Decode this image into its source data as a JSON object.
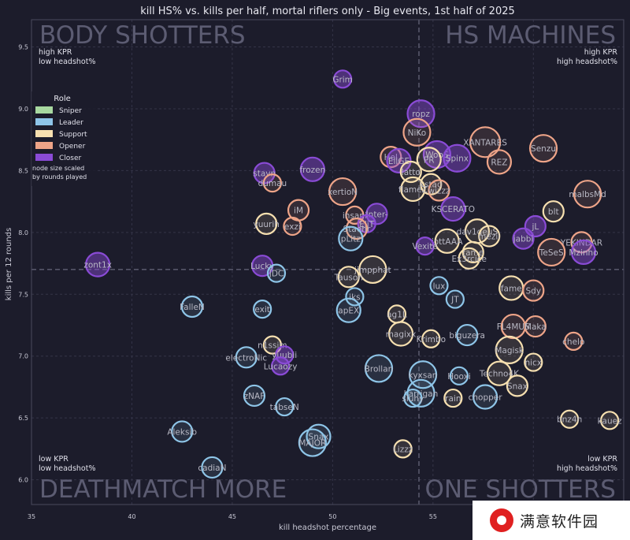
{
  "chart_data": {
    "type": "scatter",
    "title": "kill HS% vs. kills per half, mortal riflers only - Big events, 1st half of 2025",
    "xlabel": "kill headshot percentage",
    "ylabel": "kills per 12 rounds",
    "xlim": [
      35,
      64.5
    ],
    "ylim": [
      5.8,
      9.72
    ],
    "xticks": [
      35,
      40,
      45,
      50,
      55,
      60
    ],
    "yticks": [
      6.0,
      6.5,
      7.0,
      7.5,
      8.0,
      8.5,
      9.0,
      9.5
    ],
    "grid": true,
    "ref_lines": {
      "x": 54.3,
      "y": 7.7
    },
    "legend": {
      "title": "Role",
      "placement": "upper-left",
      "items": [
        {
          "name": "Sniper",
          "color": "#a8d8a0"
        },
        {
          "name": "Leader",
          "color": "#8ec5e8"
        },
        {
          "name": "Support",
          "color": "#f7e0b0"
        },
        {
          "name": "Opener",
          "color": "#eea488"
        },
        {
          "name": "Closer",
          "color": "#8a4bd6"
        }
      ],
      "note": [
        "node size scaled",
        "by rounds played"
      ]
    },
    "quadrants": {
      "top_left": {
        "title": "BODY SHOTTERS",
        "line1": "high KPR",
        "line2": "low headshot%"
      },
      "top_right": {
        "title": "HS MACHINES",
        "line1": "high KPR",
        "line2": "high headshot%"
      },
      "bottom_left": {
        "title": "DEATHMATCH MORE",
        "line1": "low KPR",
        "line2": "low headshot%"
      },
      "bottom_right": {
        "title": "ONE SHOTTERS",
        "line1": "low KPR",
        "line2": "high headshot%"
      }
    },
    "points": [
      {
        "name": "Grim",
        "x": 50.5,
        "y": 9.24,
        "role": "Closer",
        "size": 3
      },
      {
        "name": "ropz",
        "x": 54.4,
        "y": 8.96,
        "role": "Closer",
        "size": 6
      },
      {
        "name": "NiKo",
        "x": 54.2,
        "y": 8.81,
        "role": "Opener",
        "size": 6
      },
      {
        "name": "XANTARES",
        "x": 57.6,
        "y": 8.73,
        "role": "Opener",
        "size": 7
      },
      {
        "name": "Senzu",
        "x": 60.5,
        "y": 8.68,
        "role": "Opener",
        "size": 6
      },
      {
        "name": "WooS",
        "x": 55.2,
        "y": 8.63,
        "role": "Closer",
        "size": 6
      },
      {
        "name": "Spinx",
        "x": 56.2,
        "y": 8.6,
        "role": "Closer",
        "size": 6
      },
      {
        "name": "HeI",
        "x": 52.9,
        "y": 8.61,
        "role": "Opener",
        "size": 4
      },
      {
        "name": "EliGE",
        "x": 53.3,
        "y": 8.58,
        "role": "Closer",
        "size": 5
      },
      {
        "name": "PR",
        "x": 54.8,
        "y": 8.59,
        "role": "Support",
        "size": 5
      },
      {
        "name": "REZ",
        "x": 58.3,
        "y": 8.57,
        "role": "Opener",
        "size": 5
      },
      {
        "name": "frozen",
        "x": 49.0,
        "y": 8.51,
        "role": "Closer",
        "size": 5
      },
      {
        "name": "stavn",
        "x": 46.6,
        "y": 8.48,
        "role": "Closer",
        "size": 4
      },
      {
        "name": "latto",
        "x": 53.9,
        "y": 8.49,
        "role": "Support",
        "size": 4
      },
      {
        "name": "dumau",
        "x": 47.0,
        "y": 8.4,
        "role": "Opener",
        "size": 3
      },
      {
        "name": "kstad",
        "x": 54.9,
        "y": 8.39,
        "role": "Support",
        "size": 4
      },
      {
        "name": "flameZ",
        "x": 54.0,
        "y": 8.35,
        "role": "Support",
        "size": 5
      },
      {
        "name": "wizzz",
        "x": 55.3,
        "y": 8.34,
        "role": "Opener",
        "size": 4
      },
      {
        "name": "xertioN",
        "x": 50.5,
        "y": 8.33,
        "role": "Opener",
        "size": 6
      },
      {
        "name": "malbsMd",
        "x": 62.7,
        "y": 8.31,
        "role": "Opener",
        "size": 6
      },
      {
        "name": "iM",
        "x": 48.3,
        "y": 8.18,
        "role": "Opener",
        "size": 4
      },
      {
        "name": "KSCERATO",
        "x": 56.0,
        "y": 8.19,
        "role": "Closer",
        "size": 5
      },
      {
        "name": "blt",
        "x": 61.0,
        "y": 8.17,
        "role": "Support",
        "size": 4
      },
      {
        "name": "insani",
        "x": 51.1,
        "y": 8.14,
        "role": "Opener",
        "size": 3
      },
      {
        "name": "Inter-",
        "x": 52.2,
        "y": 8.15,
        "role": "Closer",
        "size": 4
      },
      {
        "name": "yuurih",
        "x": 46.7,
        "y": 8.07,
        "role": "Support",
        "size": 4
      },
      {
        "name": "exzi",
        "x": 48.0,
        "y": 8.05,
        "role": "Opener",
        "size": 3
      },
      {
        "name": "EliT",
        "x": 51.7,
        "y": 8.07,
        "role": "Closer",
        "size": 3
      },
      {
        "name": "Staehr",
        "x": 51.2,
        "y": 8.03,
        "role": "Opener",
        "size": 4
      },
      {
        "name": "jL",
        "x": 60.1,
        "y": 8.05,
        "role": "Closer",
        "size": 4
      },
      {
        "name": "dav1deuS",
        "x": 57.2,
        "y": 8.01,
        "role": "Support",
        "size": 5
      },
      {
        "name": "mezii",
        "x": 57.8,
        "y": 7.97,
        "role": "Support",
        "size": 4
      },
      {
        "name": "jabbi",
        "x": 59.5,
        "y": 7.95,
        "role": "Closer",
        "size": 4
      },
      {
        "name": "pLitz",
        "x": 50.9,
        "y": 7.95,
        "role": "Leader",
        "size": 5
      },
      {
        "name": "jottAAA",
        "x": 55.7,
        "y": 7.93,
        "role": "Support",
        "size": 5
      },
      {
        "name": "YEKINDAR",
        "x": 62.4,
        "y": 7.92,
        "role": "Opener",
        "size": 4
      },
      {
        "name": "Vexite",
        "x": 54.6,
        "y": 7.89,
        "role": "Closer",
        "size": 3
      },
      {
        "name": "fame",
        "x": 57.0,
        "y": 7.84,
        "role": "Support",
        "size": 4
      },
      {
        "name": "TeSeS",
        "x": 60.9,
        "y": 7.84,
        "role": "Opener",
        "size": 6
      },
      {
        "name": "Mzinho",
        "x": 62.5,
        "y": 7.84,
        "role": "Closer",
        "size": 5
      },
      {
        "name": "Ex3rcice",
        "x": 56.8,
        "y": 7.79,
        "role": "Support",
        "size": 4
      },
      {
        "name": "zont1x",
        "x": 38.3,
        "y": 7.74,
        "role": "Closer",
        "size": 5
      },
      {
        "name": "Lucky",
        "x": 46.5,
        "y": 7.73,
        "role": "Closer",
        "size": 4
      },
      {
        "name": "jimpphat",
        "x": 52.0,
        "y": 7.7,
        "role": "Support",
        "size": 6
      },
      {
        "name": "JDC",
        "x": 47.2,
        "y": 7.67,
        "role": "Leader",
        "size": 3
      },
      {
        "name": "Tauson",
        "x": 50.8,
        "y": 7.64,
        "role": "Support",
        "size": 4
      },
      {
        "name": "lux",
        "x": 55.3,
        "y": 7.57,
        "role": "Leader",
        "size": 3
      },
      {
        "name": "fame",
        "x": 58.9,
        "y": 7.55,
        "role": "Support",
        "size": 5
      },
      {
        "name": "Sdy",
        "x": 60.0,
        "y": 7.53,
        "role": "Opener",
        "size": 4
      },
      {
        "name": "iks",
        "x": 51.1,
        "y": 7.48,
        "role": "Leader",
        "size": 3
      },
      {
        "name": "JT",
        "x": 56.1,
        "y": 7.46,
        "role": "Leader",
        "size": 3
      },
      {
        "name": "FalleN",
        "x": 43.0,
        "y": 7.4,
        "role": "Leader",
        "size": 4
      },
      {
        "name": "exit",
        "x": 46.5,
        "y": 7.38,
        "role": "Leader",
        "size": 3
      },
      {
        "name": "apEX",
        "x": 50.8,
        "y": 7.37,
        "role": "Leader",
        "size": 5
      },
      {
        "name": "ag1L",
        "x": 53.2,
        "y": 7.34,
        "role": "Support",
        "size": 3
      },
      {
        "name": "FL4MUS",
        "x": 59.0,
        "y": 7.24,
        "role": "Opener",
        "size": 5
      },
      {
        "name": "Maka",
        "x": 60.1,
        "y": 7.24,
        "role": "Opener",
        "size": 4
      },
      {
        "name": "magixx",
        "x": 53.4,
        "y": 7.18,
        "role": "Support",
        "size": 5
      },
      {
        "name": "biguzera",
        "x": 56.7,
        "y": 7.17,
        "role": "Leader",
        "size": 4
      },
      {
        "name": "Krimbo",
        "x": 54.9,
        "y": 7.14,
        "role": "Support",
        "size": 3
      },
      {
        "name": "n1ssim",
        "x": 47.0,
        "y": 7.09,
        "role": "Support",
        "size": 3
      },
      {
        "name": "chelo",
        "x": 62.0,
        "y": 7.12,
        "role": "Opener",
        "size": 3
      },
      {
        "name": "Magisk",
        "x": 58.8,
        "y": 7.05,
        "role": "Support",
        "size": 6
      },
      {
        "name": "yuubii",
        "x": 47.6,
        "y": 7.01,
        "role": "Closer",
        "size": 3
      },
      {
        "name": "electroNic",
        "x": 45.7,
        "y": 6.99,
        "role": "Leader",
        "size": 4
      },
      {
        "name": "nicx",
        "x": 60.0,
        "y": 6.95,
        "role": "Support",
        "size": 3
      },
      {
        "name": "Lucaozy",
        "x": 47.4,
        "y": 6.92,
        "role": "Closer",
        "size": 3
      },
      {
        "name": "Brollan",
        "x": 52.3,
        "y": 6.9,
        "role": "Leader",
        "size": 6
      },
      {
        "name": "Techno4K",
        "x": 58.3,
        "y": 6.86,
        "role": "Support",
        "size": 5
      },
      {
        "name": "kyxsan",
        "x": 54.5,
        "y": 6.85,
        "role": "Leader",
        "size": 6
      },
      {
        "name": "Hooxi",
        "x": 56.3,
        "y": 6.84,
        "role": "Leader",
        "size": 3
      },
      {
        "name": "Snax",
        "x": 59.2,
        "y": 6.76,
        "role": "Support",
        "size": 4
      },
      {
        "name": "zNAF",
        "x": 46.1,
        "y": 6.68,
        "role": "Leader",
        "size": 4
      },
      {
        "name": "karrigan",
        "x": 54.4,
        "y": 6.7,
        "role": "Leader",
        "size": 6
      },
      {
        "name": "siuhy",
        "x": 54.0,
        "y": 6.66,
        "role": "Leader",
        "size": 3
      },
      {
        "name": "chopper",
        "x": 57.6,
        "y": 6.67,
        "role": "Leader",
        "size": 5
      },
      {
        "name": "rain",
        "x": 56.0,
        "y": 6.66,
        "role": "Support",
        "size": 3
      },
      {
        "name": "tabseN",
        "x": 47.6,
        "y": 6.59,
        "role": "Leader",
        "size": 3
      },
      {
        "name": "bnz4n",
        "x": 61.8,
        "y": 6.49,
        "role": "Support",
        "size": 3
      },
      {
        "name": "kauez",
        "x": 63.8,
        "y": 6.48,
        "role": "Support",
        "size": 3
      },
      {
        "name": "Aleksib",
        "x": 42.5,
        "y": 6.39,
        "role": "Leader",
        "size": 4
      },
      {
        "name": "Snax",
        "x": 49.3,
        "y": 6.35,
        "role": "Leader",
        "size": 5
      },
      {
        "name": "MAJOR",
        "x": 49.0,
        "y": 6.3,
        "role": "Leader",
        "size": 6
      },
      {
        "name": "Lizzz",
        "x": 53.5,
        "y": 6.25,
        "role": "Support",
        "size": 3
      },
      {
        "name": "cadiaN",
        "x": 44.0,
        "y": 6.1,
        "role": "Leader",
        "size": 4
      }
    ]
  },
  "watermark": {
    "text": "满意软件园"
  }
}
